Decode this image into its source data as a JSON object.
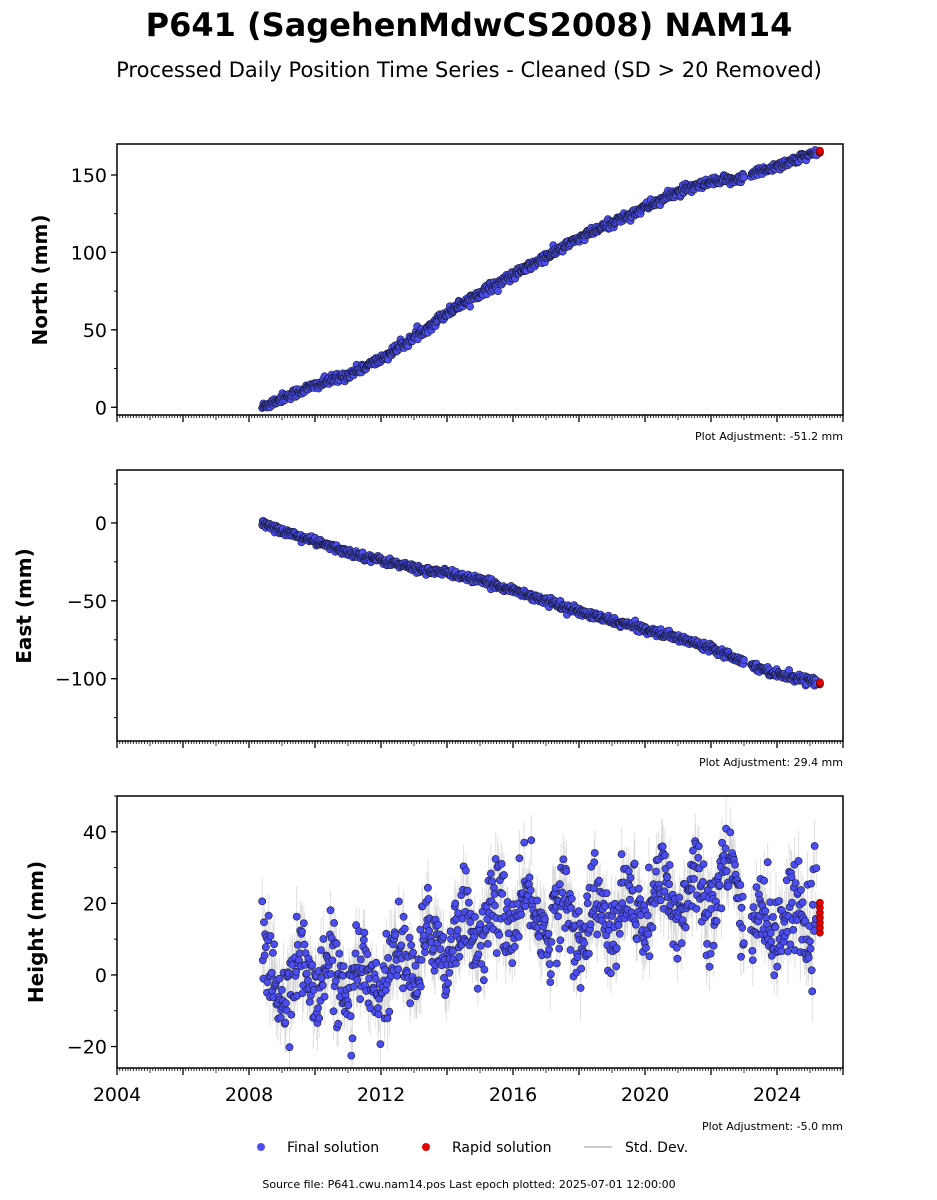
{
  "title": "P641 (SagehenMdwCS2008) NAM14",
  "subtitle": "Processed Daily Position Time Series - Cleaned (SD > 20 Removed)",
  "footer": "Source file: P641.cwu.nam14.pos  Last epoch plotted: 2025-07-01 12:00:00",
  "legend": {
    "final_label": "Final solution",
    "rapid_label": "Rapid solution",
    "std_label": "Std. Dev."
  },
  "colors": {
    "final": "#4a4ef0",
    "final_edge": "#1a1a3a",
    "rapid": "#e00000",
    "std": "#b8b8b8"
  },
  "chart_data": [
    {
      "type": "scatter",
      "ylabel": "North (mm)",
      "adjustment": "Plot Adjustment: -51.2 mm",
      "xlim": [
        2004,
        2026
      ],
      "ylim": [
        -5,
        170
      ],
      "yticks": [
        "0",
        "50",
        "100",
        "150"
      ],
      "yticks_values": [
        0,
        50,
        100,
        150
      ],
      "x": [
        2008.4,
        2009,
        2010,
        2011,
        2012,
        2013,
        2014,
        2015,
        2016,
        2017,
        2018,
        2019,
        2020,
        2021,
        2022,
        2022.9,
        2023.2,
        2024,
        2025.2
      ],
      "series": [
        {
          "name": "Final solution",
          "values": [
            0,
            6,
            14,
            21,
            31,
            45,
            61,
            74,
            85,
            97,
            109,
            119,
            129,
            139,
            145,
            148,
            150,
            156,
            164
          ]
        }
      ],
      "rapid": {
        "x": [
          2025.3
        ],
        "values": [
          165
        ]
      },
      "gap": [
        2023.0,
        2023.2
      ],
      "scatter_sd": 1.5
    },
    {
      "type": "scatter",
      "ylabel": "East (mm)",
      "adjustment": "Plot Adjustment: 29.4 mm",
      "xlim": [
        2004,
        2026
      ],
      "ylim": [
        -140,
        34
      ],
      "yticks": [
        "0",
        "−50",
        "−100"
      ],
      "yticks_values": [
        0,
        -50,
        -100
      ],
      "x": [
        2008.4,
        2009,
        2010,
        2011,
        2012,
        2013,
        2013.5,
        2014,
        2015,
        2016,
        2017,
        2018,
        2019,
        2020,
        2021,
        2022,
        2022.9,
        2023.2,
        2024,
        2025.2
      ],
      "series": [
        {
          "name": "Final solution",
          "values": [
            0,
            -5,
            -12,
            -19,
            -24,
            -29,
            -31,
            -32,
            -37,
            -43,
            -50,
            -57,
            -63,
            -68,
            -74,
            -80,
            -88,
            -91,
            -97,
            -102
          ]
        }
      ],
      "rapid": {
        "x": [
          2025.3
        ],
        "values": [
          -103
        ]
      },
      "gap": [
        2023.0,
        2023.2
      ],
      "scatter_sd": 1.2
    },
    {
      "type": "scatter",
      "ylabel": "Height (mm)",
      "adjustment": "Plot Adjustment: -5.0 mm",
      "xlim": [
        2004,
        2026
      ],
      "ylim": [
        -26,
        50
      ],
      "yticks": [
        "40",
        "20",
        "0",
        "−20"
      ],
      "yticks_values": [
        40,
        20,
        0,
        -20
      ],
      "xticks": [
        "2004",
        "2008",
        "2012",
        "2016",
        "2020",
        "2024"
      ],
      "xticks_values": [
        2004,
        2008,
        2012,
        2016,
        2020,
        2024
      ],
      "x": [
        2008.4,
        2009,
        2010,
        2011,
        2012,
        2013,
        2014,
        2015,
        2016,
        2017,
        2018,
        2019,
        2020,
        2021,
        2022,
        2022.9,
        2023.2,
        2024,
        2025.2
      ],
      "series": [
        {
          "name": "Final solution",
          "values": [
            0,
            -2,
            1,
            -4,
            0,
            5,
            10,
            14,
            18,
            16,
            15,
            16,
            19,
            22,
            24,
            25,
            12,
            15,
            17
          ]
        }
      ],
      "rapid": {
        "x": [
          2025.3
        ],
        "values": [
          16
        ]
      },
      "gap": [
        2023.0,
        2023.2
      ],
      "scatter_sd": 6,
      "seasonal_amp": 6
    }
  ]
}
